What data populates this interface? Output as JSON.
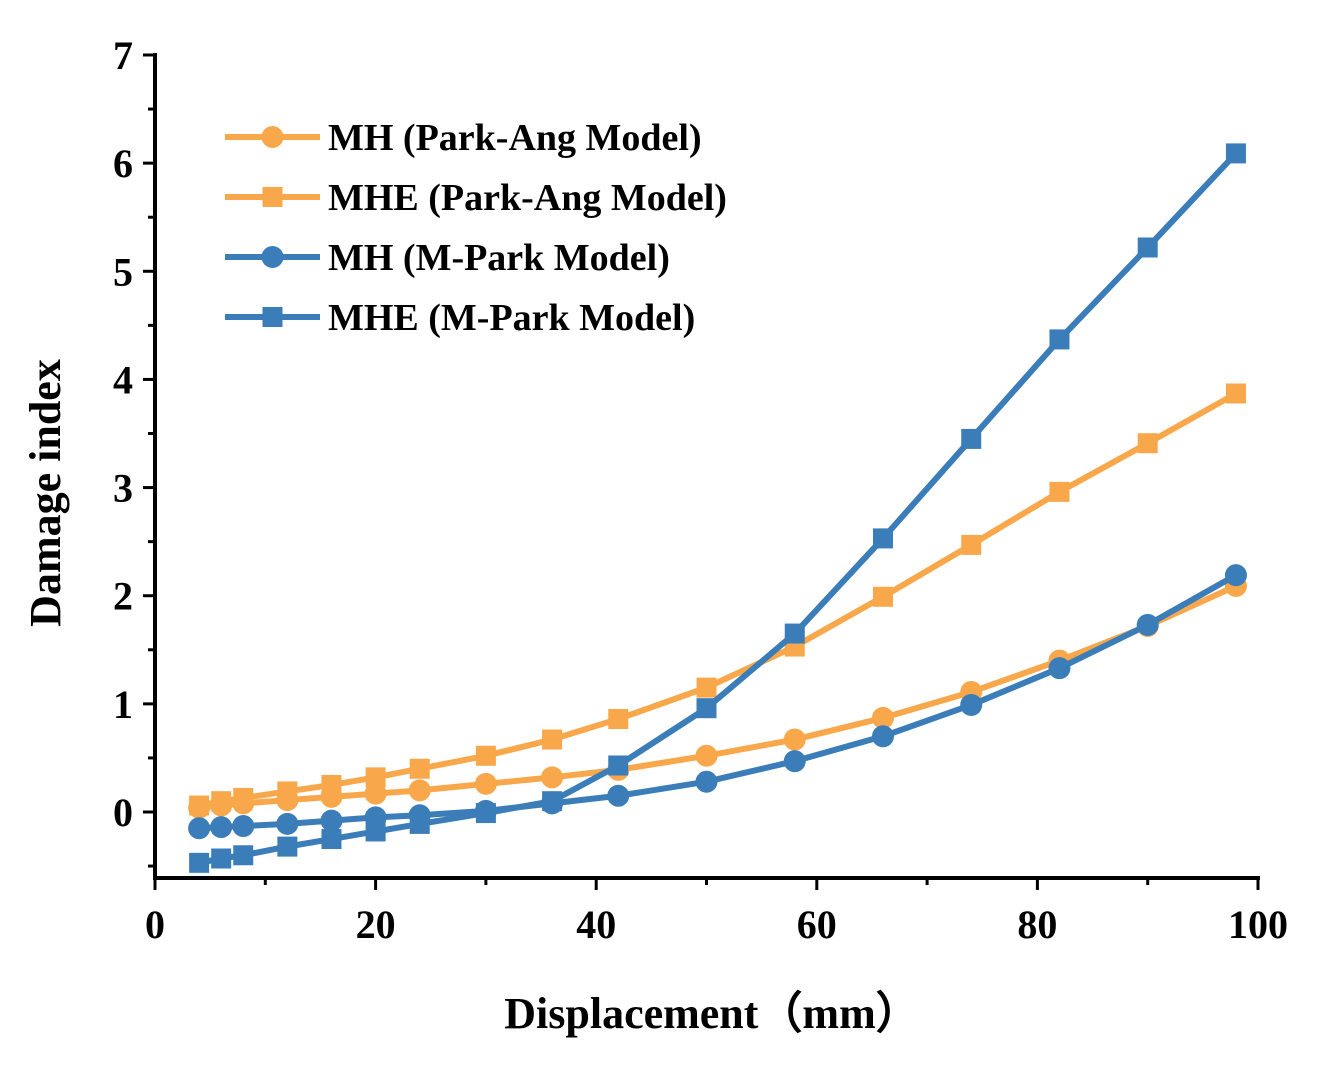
{
  "chart_data": {
    "type": "line",
    "title": "",
    "xlabel": "Displacement（mm）",
    "ylabel": "Damage index",
    "xlim": [
      0,
      100
    ],
    "ylim": [
      -0.55,
      7
    ],
    "x_ticks": [
      0,
      20,
      40,
      60,
      80,
      100
    ],
    "y_ticks": [
      0,
      1,
      2,
      3,
      4,
      5,
      6,
      7
    ],
    "grid": false,
    "legend_position": "top-left",
    "series": [
      {
        "name": "MH (Park-Ang Model)",
        "color": "#F8A84B",
        "marker": "circle",
        "x": [
          4,
          6,
          8,
          12,
          16,
          20,
          24,
          30,
          36,
          42,
          50,
          58,
          66,
          74,
          82,
          90,
          98
        ],
        "y": [
          0.04,
          0.06,
          0.08,
          0.11,
          0.14,
          0.17,
          0.2,
          0.26,
          0.32,
          0.39,
          0.52,
          0.67,
          0.87,
          1.11,
          1.4,
          1.72,
          2.09
        ]
      },
      {
        "name": "MHE (Park-Ang Model)",
        "color": "#F8A84B",
        "marker": "square",
        "x": [
          4,
          6,
          8,
          12,
          16,
          20,
          24,
          30,
          36,
          42,
          50,
          58,
          66,
          74,
          82,
          90,
          98
        ],
        "y": [
          0.06,
          0.1,
          0.13,
          0.19,
          0.25,
          0.32,
          0.4,
          0.52,
          0.67,
          0.86,
          1.15,
          1.53,
          1.99,
          2.47,
          2.96,
          3.41,
          3.87
        ]
      },
      {
        "name": "MH (M-Park Model)",
        "color": "#3A7DB8",
        "marker": "circle",
        "x": [
          4,
          6,
          8,
          12,
          16,
          20,
          24,
          30,
          36,
          42,
          50,
          58,
          66,
          74,
          82,
          90,
          98
        ],
        "y": [
          -0.15,
          -0.14,
          -0.13,
          -0.11,
          -0.08,
          -0.05,
          -0.03,
          0.01,
          0.08,
          0.15,
          0.28,
          0.47,
          0.7,
          0.99,
          1.33,
          1.73,
          2.19
        ]
      },
      {
        "name": "MHE (M-Park Model)",
        "color": "#3A7DB8",
        "marker": "square",
        "x": [
          4,
          6,
          8,
          12,
          16,
          20,
          24,
          30,
          36,
          42,
          50,
          58,
          66,
          74,
          82,
          90,
          98
        ],
        "y": [
          -0.47,
          -0.43,
          -0.4,
          -0.32,
          -0.25,
          -0.18,
          -0.11,
          -0.01,
          0.1,
          0.43,
          0.96,
          1.65,
          2.53,
          3.45,
          4.37,
          5.22,
          6.09
        ]
      }
    ]
  }
}
